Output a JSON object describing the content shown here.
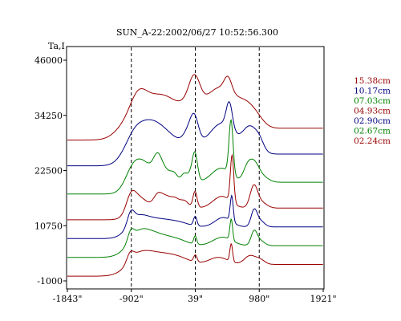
{
  "chart_data": {
    "type": "line",
    "title": "SUN_A-22:2002/06/27 10:52:56.300",
    "ylabel": "Ta,I",
    "xlabel": "",
    "x_range": [
      -1843,
      1921
    ],
    "ylim": [
      -1000,
      46000
    ],
    "x_ticks": [
      {
        "value": -1843,
        "label": "-1843\""
      },
      {
        "value": -902,
        "label": "-902\""
      },
      {
        "value": 39,
        "label": "39\""
      },
      {
        "value": 980,
        "label": "980\""
      },
      {
        "value": 1921,
        "label": "1921\""
      }
    ],
    "y_ticks": [
      {
        "value": 46000,
        "label": "46000"
      },
      {
        "value": 34250,
        "label": "34250"
      },
      {
        "value": 22500,
        "label": "22500"
      },
      {
        "value": 10750,
        "label": "10750"
      },
      {
        "value": -1000,
        "label": "-1000"
      }
    ],
    "vertical_dashed_lines_x": [
      -902,
      39,
      980
    ],
    "grid": false,
    "legend_position": "right",
    "series": [
      {
        "name": "15.38cm",
        "color": "#990000",
        "baseline": 29000,
        "peaks": [
          [
            -1000,
            150,
            2000
          ],
          [
            -800,
            120,
            4000
          ],
          [
            -560,
            260,
            5000
          ],
          [
            -300,
            260,
            3000
          ],
          [
            -40,
            110,
            2000
          ],
          [
            30,
            80,
            5500
          ],
          [
            400,
            240,
            8500
          ],
          [
            520,
            55,
            3000
          ],
          [
            720,
            130,
            1500
          ],
          [
            850,
            120,
            2500
          ],
          [
            980,
            100,
            800
          ]
        ]
      },
      {
        "name": "10.17cm",
        "color": "#000080",
        "baseline": 23500,
        "peaks": [
          [
            -900,
            140,
            3000
          ],
          [
            -650,
            200,
            5500
          ],
          [
            -350,
            230,
            3000
          ],
          [
            -20,
            90,
            4500
          ],
          [
            30,
            55,
            3000
          ],
          [
            430,
            200,
            6500
          ],
          [
            540,
            45,
            5500
          ],
          [
            800,
            90,
            2500
          ],
          [
            900,
            100,
            3500
          ],
          [
            990,
            60,
            1200
          ]
        ]
      },
      {
        "name": "07.03cm",
        "color": "#008000",
        "baseline": 17500,
        "peaks": [
          [
            -900,
            110,
            3000
          ],
          [
            -720,
            140,
            4000
          ],
          [
            -520,
            60,
            3500
          ],
          [
            -420,
            90,
            2500
          ],
          [
            -270,
            55,
            1500
          ],
          [
            -130,
            40,
            1500
          ],
          [
            -30,
            55,
            1800
          ],
          [
            35,
            38,
            5500
          ],
          [
            420,
            140,
            3000
          ],
          [
            565,
            30,
            11500
          ],
          [
            800,
            60,
            2500
          ],
          [
            905,
            75,
            4000
          ],
          [
            1050,
            80,
            900
          ]
        ]
      },
      {
        "name": "04.93cm",
        "color": "#990000",
        "baseline": 12000,
        "peaks": [
          [
            -910,
            70,
            3000
          ],
          [
            -800,
            120,
            2500
          ],
          [
            -520,
            60,
            2000
          ],
          [
            -400,
            90,
            2500
          ],
          [
            -250,
            60,
            1500
          ],
          [
            -120,
            60,
            1500
          ],
          [
            35,
            30,
            3500
          ],
          [
            430,
            130,
            2500
          ],
          [
            580,
            25,
            10000
          ],
          [
            900,
            55,
            4500
          ],
          [
            1010,
            80,
            1200
          ]
        ]
      },
      {
        "name": "02.90cm",
        "color": "#000080",
        "baseline": 8000,
        "peaks": [
          [
            -910,
            50,
            2500
          ],
          [
            -820,
            150,
            2500
          ],
          [
            -500,
            180,
            1500
          ],
          [
            -200,
            150,
            800
          ],
          [
            38,
            25,
            2000
          ],
          [
            450,
            120,
            2000
          ],
          [
            575,
            22,
            5500
          ],
          [
            905,
            45,
            3500
          ],
          [
            1000,
            60,
            1200
          ]
        ]
      },
      {
        "name": "02.67cm",
        "color": "#008000",
        "baseline": 4000,
        "peaks": [
          [
            -910,
            45,
            2000
          ],
          [
            -800,
            170,
            3000
          ],
          [
            -500,
            200,
            2000
          ],
          [
            -200,
            150,
            800
          ],
          [
            38,
            22,
            1800
          ],
          [
            440,
            140,
            1800
          ],
          [
            568,
            20,
            4500
          ],
          [
            905,
            45,
            3000
          ],
          [
            1000,
            60,
            1000
          ]
        ]
      },
      {
        "name": "02.24cm",
        "color": "#990000",
        "baseline": 0,
        "peaks": [
          [
            -920,
            50,
            1800
          ],
          [
            -820,
            180,
            2200
          ],
          [
            -500,
            220,
            2000
          ],
          [
            -200,
            170,
            1000
          ],
          [
            40,
            25,
            1500
          ],
          [
            380,
            140,
            1500
          ],
          [
            568,
            20,
            3800
          ],
          [
            840,
            80,
            1800
          ],
          [
            990,
            70,
            1000
          ]
        ]
      }
    ]
  }
}
